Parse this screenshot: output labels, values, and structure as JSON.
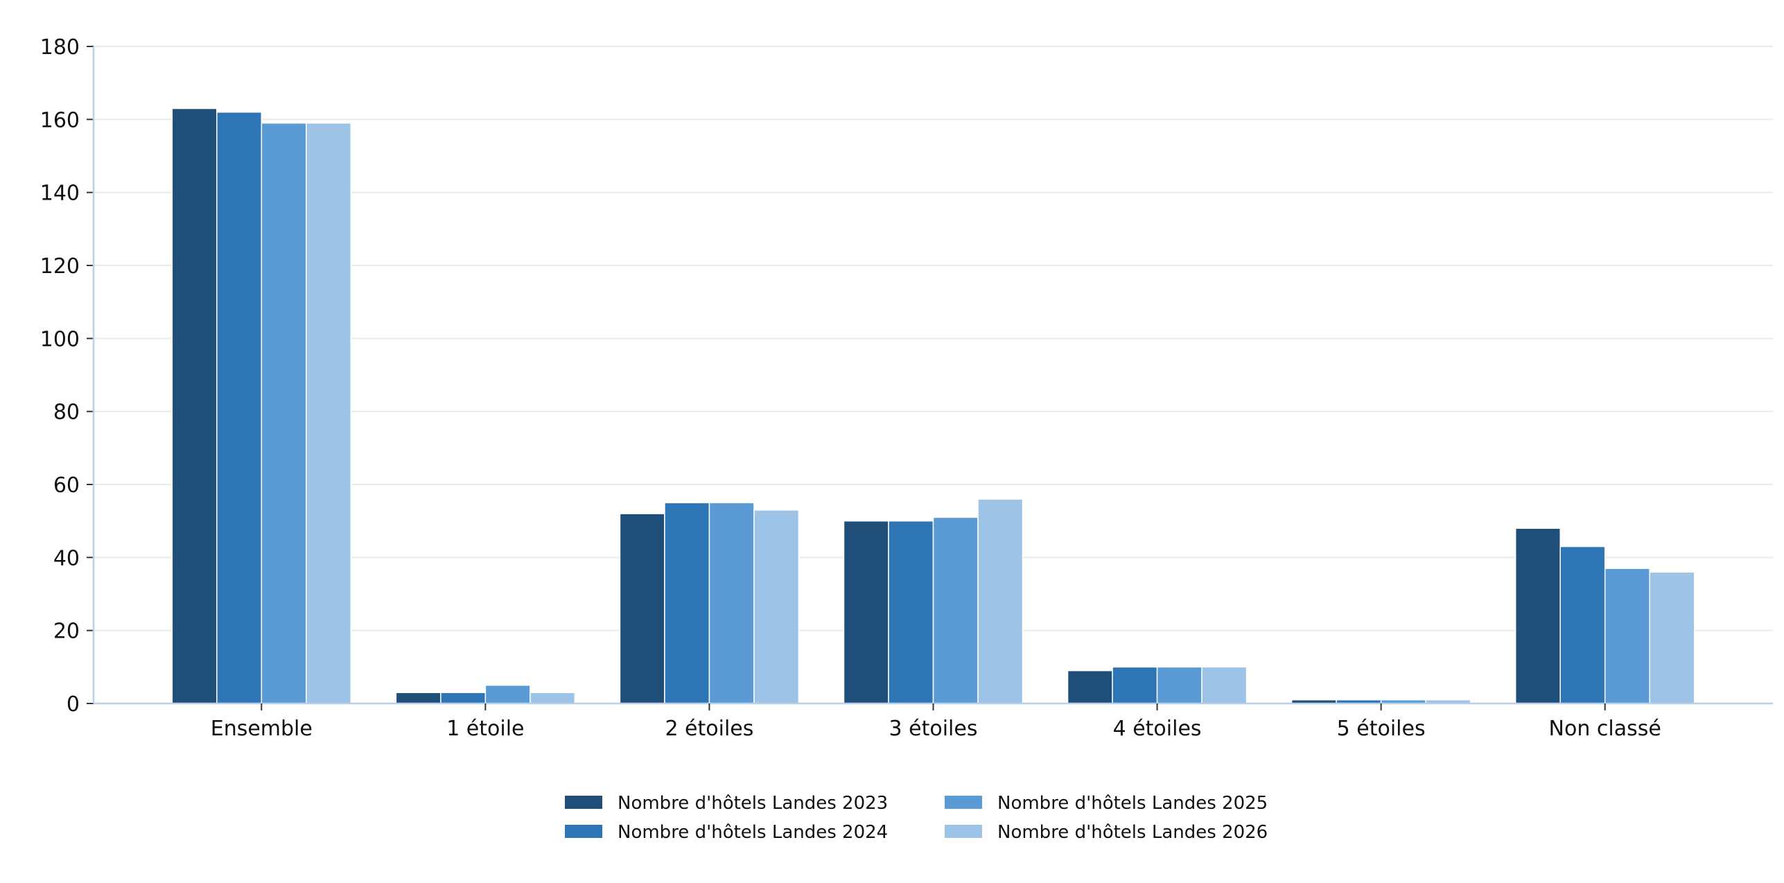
{
  "chart_data": {
    "type": "bar",
    "categories": [
      "Ensemble",
      "1 étoile",
      "2 étoiles",
      "3 étoiles",
      "4 étoiles",
      "5 étoiles",
      "Non classé"
    ],
    "series": [
      {
        "name": "Nombre d'hôtels Landes 2023",
        "color": "#1f4e79",
        "values": [
          163,
          3,
          52,
          50,
          9,
          1,
          48
        ]
      },
      {
        "name": "Nombre d'hôtels Landes 2024",
        "color": "#2e75b6",
        "values": [
          162,
          3,
          55,
          50,
          10,
          1,
          43
        ]
      },
      {
        "name": "Nombre d'hôtels Landes 2025",
        "color": "#5b9bd5",
        "values": [
          159,
          5,
          55,
          51,
          10,
          1,
          37
        ]
      },
      {
        "name": "Nombre d'hôtels Landes 2026",
        "color": "#9dc3e6",
        "values": [
          159,
          3,
          53,
          56,
          10,
          1,
          36
        ]
      }
    ],
    "yticks": [
      "0",
      "20",
      "40",
      "60",
      "80",
      "100",
      "120",
      "140",
      "160",
      "180"
    ],
    "ylim": [
      0,
      180
    ],
    "title": "",
    "xlabel": "",
    "ylabel": "",
    "grid": "horizontal",
    "legend_position": "bottom-center",
    "colors": {
      "axis": "#b8d0e8",
      "grid": "#e3ebf3"
    }
  }
}
